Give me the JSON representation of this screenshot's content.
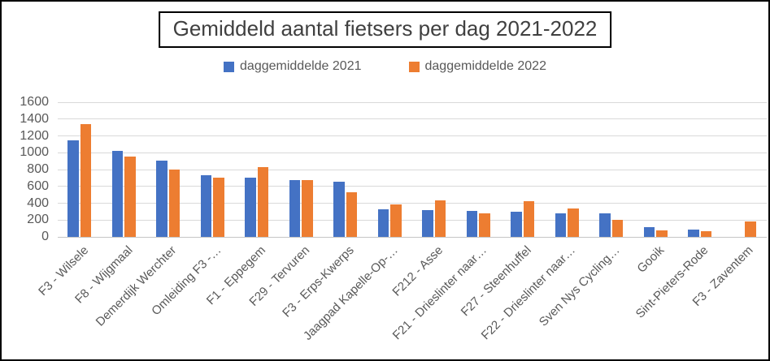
{
  "chart_data": {
    "type": "bar",
    "title": "Gemiddeld aantal fietsers per dag 2021-2022",
    "xlabel": "",
    "ylabel": "",
    "ylim": [
      0,
      1600
    ],
    "yticks": [
      0,
      200,
      400,
      600,
      800,
      1000,
      1200,
      1400,
      1600
    ],
    "grid": true,
    "legend_position": "top",
    "categories": [
      "F3 - Wilsele",
      "F8 - Wijgmaal",
      "Demerdijk Werchter",
      "Omleiding F3 -…",
      "F1 - Eppegem",
      "F29 - Tervuren",
      "F3 - Erps-Kwerps",
      "Jaagpad Kapelle-Op-…",
      "F212 - Asse",
      "F21 - Drieslinter naar…",
      "F27 - Steenhuffel",
      "F22 - Drieslinter naar…",
      "Sven Nys Cycling…",
      "Gooik",
      "Sint-Pieters-Rode",
      "F3 - Zaventem"
    ],
    "series": [
      {
        "name": "daggemiddelde 2021",
        "color": "#4472C4",
        "values": [
          1150,
          1020,
          910,
          730,
          700,
          670,
          660,
          330,
          320,
          310,
          300,
          275,
          280,
          120,
          90,
          0
        ]
      },
      {
        "name": "daggemiddelde 2022",
        "color": "#ED7D31",
        "values": [
          1340,
          950,
          800,
          700,
          825,
          670,
          530,
          385,
          430,
          280,
          420,
          340,
          200,
          80,
          70,
          185
        ]
      }
    ]
  },
  "colors": {
    "series_2021": "#4472C4",
    "series_2022": "#ED7D31",
    "grid": "#D9D9D9",
    "grid_dark": "#C6C6C6",
    "axis_text": "#595959",
    "title_text": "#404040",
    "border": "#000000"
  }
}
